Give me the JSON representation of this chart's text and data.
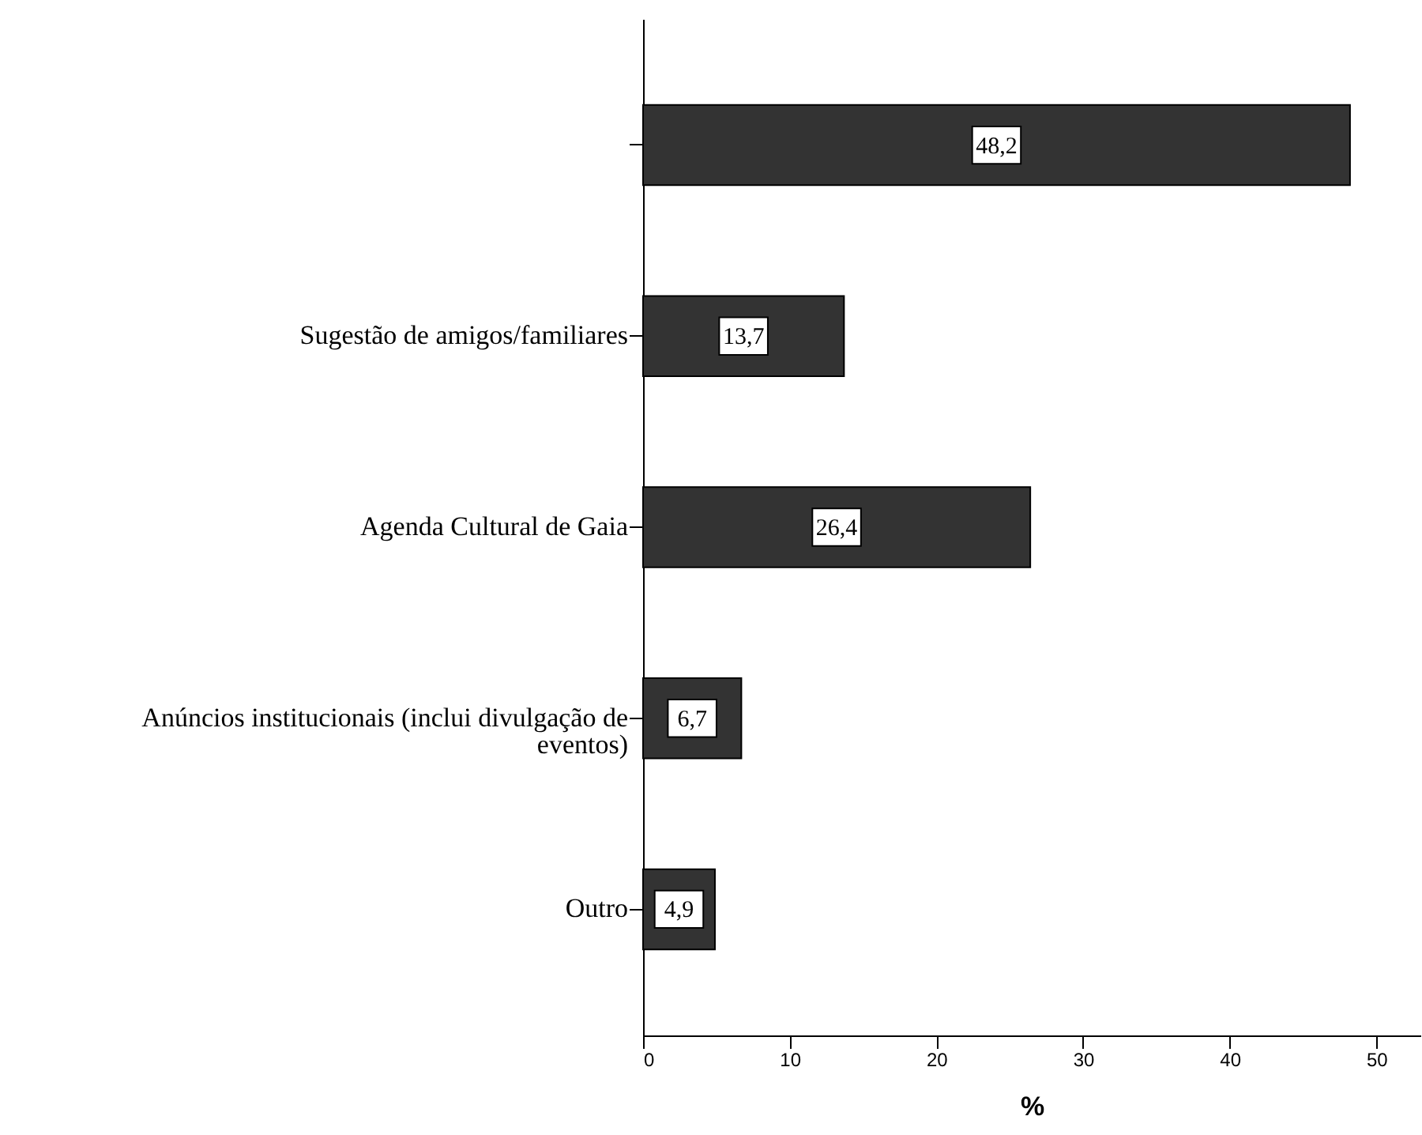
{
  "chart_data": {
    "type": "bar",
    "orientation": "horizontal",
    "xlabel": "%",
    "categories": [
      null,
      "Sugestão de amigos/familiares",
      "Agenda Cultural de Gaia",
      "Anúncios institucionais (inclui divulgação de eventos)",
      "Outro"
    ],
    "values": [
      48.2,
      13.7,
      26.4,
      6.7,
      4.9
    ],
    "value_labels": [
      "48,2",
      "13,7",
      "26,4",
      "6,7",
      "4,9"
    ],
    "color": "#333333",
    "xlim": [
      0,
      53
    ],
    "xticks": [
      0,
      10,
      20,
      30,
      40,
      50
    ],
    "grid": false
  }
}
